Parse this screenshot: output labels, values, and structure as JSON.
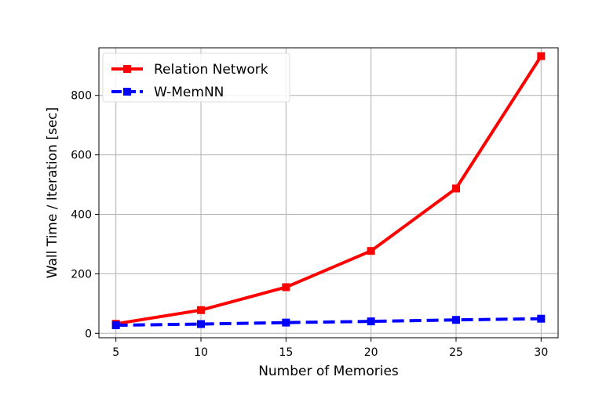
{
  "chart_data": {
    "type": "line",
    "title": "",
    "xlabel": "Number of Memories",
    "ylabel": "Wall Time / Iteration [sec]",
    "x": [
      5,
      10,
      15,
      20,
      25,
      30
    ],
    "xlim": [
      4,
      31
    ],
    "ylim": [
      -15,
      960
    ],
    "xticks": [
      5,
      10,
      15,
      20,
      25,
      30
    ],
    "yticks": [
      0,
      200,
      400,
      600,
      800
    ],
    "grid": true,
    "legend_position": "top-left",
    "series": [
      {
        "name": "Relation Network",
        "values": [
          32,
          78,
          155,
          277,
          487,
          932
        ],
        "color": "#ff0000",
        "style": "solid",
        "marker": "square"
      },
      {
        "name": "W-MemNN",
        "values": [
          27,
          31,
          36,
          40,
          45,
          49
        ],
        "color": "#0000ff",
        "style": "dashed",
        "marker": "square"
      }
    ]
  }
}
